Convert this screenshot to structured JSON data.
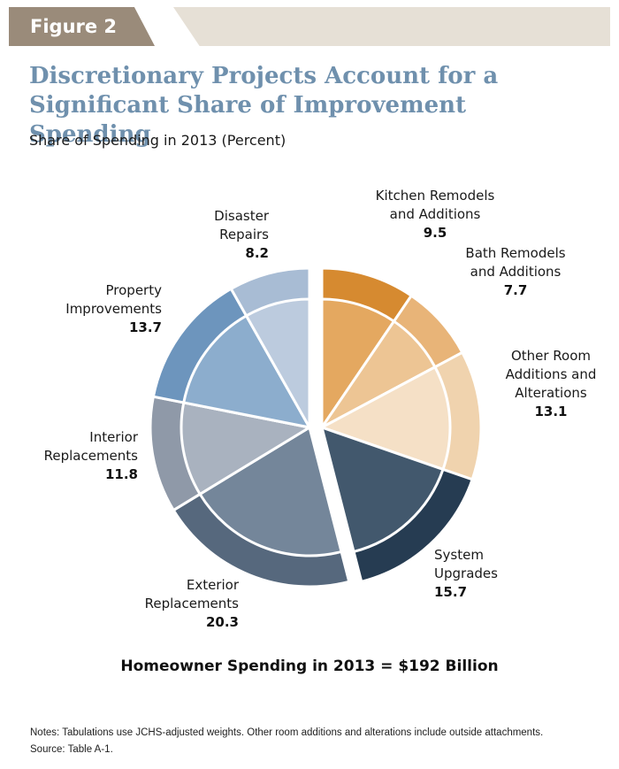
{
  "figure_label": "Figure 2",
  "title": "Discretionary Projects Account for a Significant Share of Improvement Spending",
  "subtitle": "Share of Spending in 2013 (Percent)",
  "total_text": "Homeowner Spending in 2013 = $192 Billion",
  "notes": "Notes: Tabulations use JCHS-adjusted weights. Other room additions and alterations include outside attachments.",
  "source": "Source: Table A-1.",
  "colors": {
    "tab": "#9a8b7a",
    "band": "#e6e0d6",
    "title": "#6f90ad"
  },
  "chart_data": {
    "type": "pie",
    "title": "Discretionary Projects Account for a Significant Share of Improvement Spending",
    "subtitle": "Share of Spending in 2013 (Percent)",
    "unit": "Percent",
    "slices": [
      {
        "label_lines": [
          "Kitchen Remodels",
          "and Additions"
        ],
        "value": 9.5,
        "value_text": "9.5",
        "color": "#d68a30",
        "inner_color": "#e4a860",
        "exploded": true
      },
      {
        "label_lines": [
          "Bath Remodels",
          "and Additions"
        ],
        "value": 7.7,
        "value_text": "7.7",
        "color": "#e8b478",
        "inner_color": "#edc594",
        "exploded": true
      },
      {
        "label_lines": [
          "Other Room",
          "Additions and",
          "Alterations"
        ],
        "value": 13.1,
        "value_text": "13.1",
        "color": "#f0d3ae",
        "inner_color": "#f5e0c6",
        "exploded": true
      },
      {
        "label_lines": [
          "System",
          "Upgrades"
        ],
        "value": 15.7,
        "value_text": "15.7",
        "color": "#263c52",
        "inner_color": "#42586d",
        "exploded": true
      },
      {
        "label_lines": [
          "Exterior",
          "Replacements"
        ],
        "value": 20.3,
        "value_text": "20.3",
        "color": "#56687d",
        "inner_color": "#74869a",
        "exploded": false
      },
      {
        "label_lines": [
          "Interior",
          "Replacements"
        ],
        "value": 11.8,
        "value_text": "11.8",
        "color": "#8f99a8",
        "inner_color": "#a9b2bf",
        "exploded": false
      },
      {
        "label_lines": [
          "Property",
          "Improvements"
        ],
        "value": 13.7,
        "value_text": "13.7",
        "color": "#6d95bd",
        "inner_color": "#8cadcd",
        "exploded": false
      },
      {
        "label_lines": [
          "Disaster",
          "Repairs"
        ],
        "value": 8.2,
        "value_text": "8.2",
        "color": "#a8bcd4",
        "inner_color": "#bccbde",
        "exploded": false
      }
    ]
  }
}
